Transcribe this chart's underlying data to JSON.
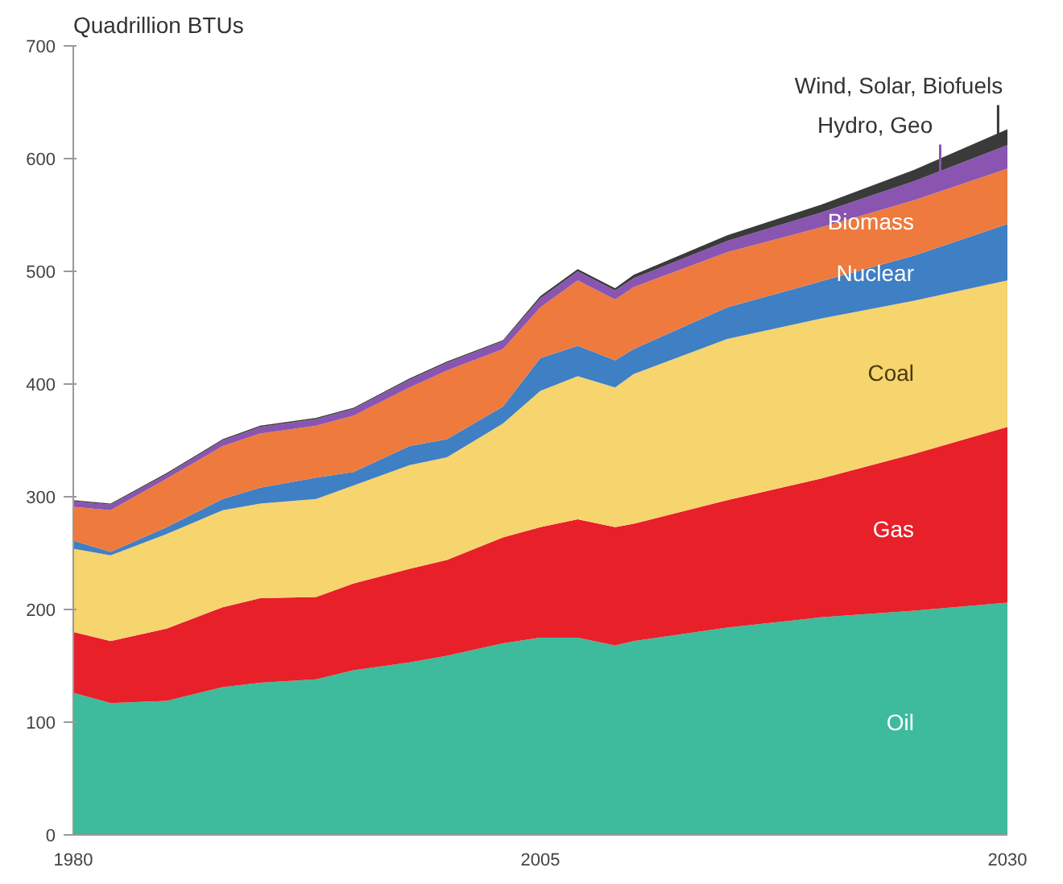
{
  "chart_data": {
    "type": "area",
    "stacked": true,
    "ylabel": "Quadrillion BTUs",
    "x": [
      1980,
      1982,
      1985,
      1988,
      1990,
      1993,
      1995,
      1998,
      2000,
      2003,
      2005,
      2007,
      2009,
      2010,
      2015,
      2020,
      2025,
      2030
    ],
    "xlim": [
      1980,
      2030
    ],
    "xticks": [
      1980,
      2005,
      2030
    ],
    "ylim": [
      0,
      700
    ],
    "yticks": [
      0,
      100,
      200,
      300,
      400,
      500,
      600,
      700
    ],
    "series": [
      {
        "name": "Oil",
        "color": "#3dbb9c",
        "values": [
          126,
          117,
          119,
          131,
          135,
          138,
          146,
          153,
          159,
          170,
          175,
          175,
          168,
          172,
          184,
          193,
          199,
          206
        ]
      },
      {
        "name": "Gas",
        "color": "#e8202a",
        "values": [
          54,
          55,
          64,
          71,
          75,
          73,
          77,
          83,
          85,
          94,
          98,
          105,
          105,
          104,
          113,
          123,
          139,
          156
        ]
      },
      {
        "name": "Coal",
        "color": "#f6d46e",
        "values": [
          74,
          76,
          84,
          86,
          84,
          87,
          87,
          92,
          91,
          101,
          121,
          127,
          124,
          133,
          143,
          142,
          136,
          130
        ]
      },
      {
        "name": "Nuclear",
        "color": "#3f7fc4",
        "values": [
          7,
          3,
          6,
          10,
          14,
          19,
          12,
          17,
          16,
          15,
          29,
          27,
          24,
          22,
          28,
          33,
          40,
          50
        ]
      },
      {
        "name": "Biomass",
        "color": "#ee7a3d",
        "values": [
          30,
          37,
          43,
          47,
          48,
          46,
          50,
          52,
          61,
          51,
          45,
          58,
          54,
          55,
          49,
          48,
          49,
          49
        ]
      },
      {
        "name": "Hydro, Geo",
        "color": "#8a55b0",
        "values": [
          5,
          5,
          4,
          5,
          6,
          6,
          6,
          7,
          7,
          7,
          8,
          8,
          8,
          8,
          10,
          13,
          17,
          21
        ]
      },
      {
        "name": "Wind, Solar, Biofuels",
        "color": "#3a3a3a",
        "values": [
          1,
          1,
          1,
          1,
          1,
          1,
          1,
          1,
          1,
          1,
          2,
          2,
          2,
          3,
          5,
          7,
          10,
          14
        ]
      }
    ],
    "grid": false
  }
}
